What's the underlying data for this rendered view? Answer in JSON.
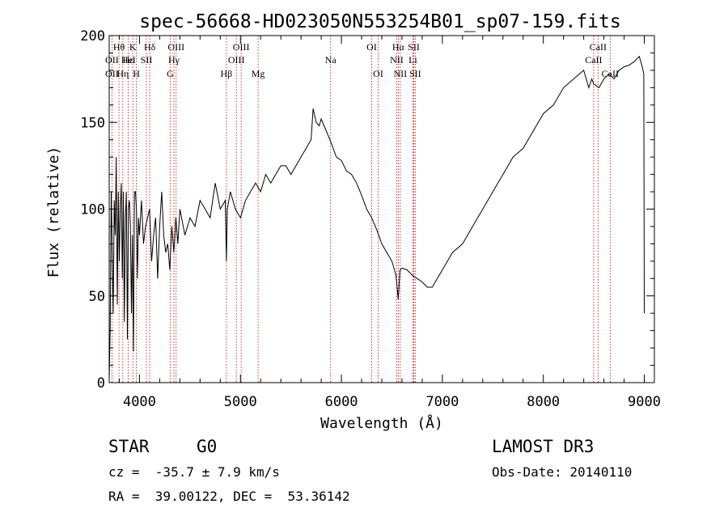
{
  "chart_data": {
    "type": "line",
    "title": "spec-56668-HD023050N553254B01_sp07-159.fits",
    "xlabel": "Wavelength (Å)",
    "ylabel": "Flux (relative)",
    "xlim": [
      3700,
      9100
    ],
    "ylim": [
      0,
      200
    ],
    "xticks": [
      4000,
      5000,
      6000,
      7000,
      8000,
      9000
    ],
    "yticks": [
      0,
      50,
      100,
      150,
      200
    ],
    "grid": false,
    "series": [
      {
        "name": "flux",
        "x": [
          3700,
          3710,
          3720,
          3730,
          3740,
          3750,
          3760,
          3770,
          3780,
          3790,
          3800,
          3810,
          3820,
          3830,
          3840,
          3850,
          3860,
          3870,
          3880,
          3890,
          3900,
          3910,
          3920,
          3930,
          3940,
          3950,
          3960,
          3970,
          3980,
          3990,
          4000,
          4020,
          4040,
          4060,
          4080,
          4100,
          4120,
          4140,
          4160,
          4180,
          4200,
          4220,
          4240,
          4260,
          4280,
          4300,
          4320,
          4340,
          4360,
          4380,
          4400,
          4450,
          4500,
          4550,
          4600,
          4650,
          4700,
          4750,
          4800,
          4850,
          4861,
          4870,
          4900,
          4950,
          5000,
          5050,
          5100,
          5150,
          5200,
          5250,
          5300,
          5350,
          5400,
          5450,
          5500,
          5550,
          5600,
          5650,
          5700,
          5720,
          5750,
          5780,
          5800,
          5850,
          5900,
          5950,
          6000,
          6050,
          6100,
          6150,
          6200,
          6250,
          6300,
          6350,
          6400,
          6450,
          6500,
          6540,
          6563,
          6580,
          6600,
          6650,
          6700,
          6750,
          6800,
          6850,
          6900,
          6950,
          7000,
          7100,
          7200,
          7300,
          7400,
          7500,
          7600,
          7700,
          7800,
          7900,
          8000,
          8100,
          8200,
          8300,
          8400,
          8450,
          8480,
          8500,
          8550,
          8600,
          8650,
          8700,
          8750,
          8800,
          8850,
          8900,
          8950,
          8980,
          8995,
          9000
        ],
        "y": [
          2,
          30,
          110,
          75,
          40,
          105,
          85,
          130,
          45,
          110,
          70,
          100,
          115,
          60,
          110,
          35,
          95,
          110,
          25,
          100,
          105,
          90,
          40,
          85,
          18,
          110,
          110,
          100,
          60,
          95,
          85,
          105,
          80,
          90,
          95,
          100,
          70,
          85,
          95,
          60,
          90,
          110,
          85,
          75,
          80,
          65,
          90,
          75,
          95,
          80,
          100,
          85,
          95,
          90,
          105,
          100,
          95,
          115,
          100,
          105,
          70,
          100,
          110,
          100,
          95,
          105,
          110,
          115,
          110,
          120,
          115,
          120,
          125,
          125,
          120,
          125,
          130,
          135,
          140,
          158,
          150,
          148,
          152,
          145,
          138,
          130,
          128,
          122,
          120,
          115,
          108,
          100,
          95,
          88,
          80,
          75,
          70,
          62,
          48,
          65,
          66,
          65,
          62,
          60,
          58,
          55,
          55,
          60,
          65,
          75,
          80,
          90,
          100,
          110,
          120,
          130,
          135,
          145,
          155,
          160,
          170,
          175,
          180,
          170,
          175,
          172,
          170,
          175,
          178,
          175,
          180,
          182,
          183,
          185,
          188,
          182,
          178,
          40
        ]
      }
    ],
    "line_labels": [
      {
        "text": "Hθ",
        "x": 3797,
        "row": 0
      },
      {
        "text": "OII",
        "x": 3727,
        "row": 1
      },
      {
        "text": "OII",
        "x": 3727,
        "row": 2
      },
      {
        "text": "K",
        "x": 3934,
        "row": 0
      },
      {
        "text": "Hε",
        "x": 3889,
        "row": 1
      },
      {
        "text": "Hη",
        "x": 3835,
        "row": 2
      },
      {
        "text": "HeI",
        "x": 3890,
        "row": 1
      },
      {
        "text": "SII",
        "x": 4069,
        "row": 1
      },
      {
        "text": "H",
        "x": 3969,
        "row": 2
      },
      {
        "text": "Hδ",
        "x": 4102,
        "row": 0
      },
      {
        "text": "OIII",
        "x": 4363,
        "row": 0
      },
      {
        "text": "Hγ",
        "x": 4341,
        "row": 1
      },
      {
        "text": "G",
        "x": 4305,
        "row": 2
      },
      {
        "text": "OIII",
        "x": 5007,
        "row": 0
      },
      {
        "text": "OIII",
        "x": 4959,
        "row": 1
      },
      {
        "text": "Hβ",
        "x": 4861,
        "row": 2
      },
      {
        "text": "Mg",
        "x": 5175,
        "row": 2
      },
      {
        "text": "Na",
        "x": 5893,
        "row": 1
      },
      {
        "text": "OI",
        "x": 6300,
        "row": 0
      },
      {
        "text": "OI",
        "x": 6364,
        "row": 2
      },
      {
        "text": "Hα",
        "x": 6563,
        "row": 0
      },
      {
        "text": "SII",
        "x": 6717,
        "row": 0
      },
      {
        "text": "NII",
        "x": 6548,
        "row": 1
      },
      {
        "text": "Li",
        "x": 6708,
        "row": 1
      },
      {
        "text": "NII",
        "x": 6583,
        "row": 2
      },
      {
        "text": "SII",
        "x": 6731,
        "row": 2
      },
      {
        "text": "CaII",
        "x": 8542,
        "row": 0
      },
      {
        "text": "CaII",
        "x": 8498,
        "row": 1
      },
      {
        "text": "CaII",
        "x": 8662,
        "row": 2
      }
    ],
    "marker_lines": [
      3727,
      3797,
      3835,
      3889,
      3934,
      3969,
      4069,
      4102,
      4305,
      4341,
      4363,
      4861,
      4959,
      5007,
      5175,
      5893,
      6300,
      6364,
      6548,
      6563,
      6583,
      6708,
      6717,
      6731,
      8498,
      8542,
      8662
    ]
  },
  "info": {
    "object_type": "STAR",
    "subclass": "G0",
    "survey": "LAMOST DR3",
    "redshift": "cz =  -35.7 ± 7.9 km/s",
    "obs_date": "Obs-Date: 20140110",
    "coords": "RA =  39.00122, DEC =  53.36142"
  },
  "colors": {
    "line": "#000000",
    "marker": "#cc0000",
    "background": "#ffffff"
  }
}
